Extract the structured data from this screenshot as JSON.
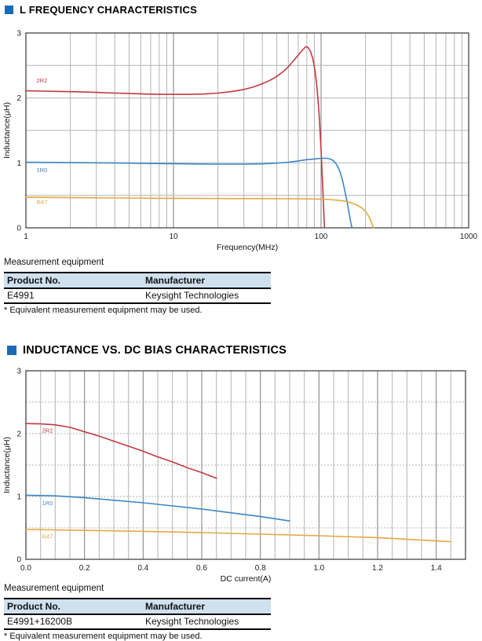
{
  "colors": {
    "accent_blue": "#1a6bb5",
    "table_header_bg": "#cfe0ee",
    "series_red": "#bf3a42",
    "series_blue": "#3b86c4",
    "series_orange": "#e2a942",
    "grid_minor": "#b3b3b3",
    "grid_major": "#7d7d7d",
    "plot_border": "#444444"
  },
  "section1": {
    "title": "L FREQUENCY CHARACTERISTICS",
    "equipment": {
      "caption": "Measurement equipment",
      "columns": [
        "Product No.",
        "Manufacturer"
      ],
      "rows": [
        [
          "E4991",
          "Keysight Technologies"
        ]
      ],
      "footnote": "* Equivalent measurement equipment may be used."
    }
  },
  "section2": {
    "title": "INDUCTANCE VS. DC BIAS CHARACTERISTICS",
    "equipment": {
      "caption": "Measurement equipment",
      "columns": [
        "Product No.",
        "Manufacturer"
      ],
      "rows": [
        [
          "E4991+16200B",
          "Keysight Technologies"
        ]
      ],
      "footnote": "* Equivalent measurement equipment may be used."
    }
  },
  "chart_data": [
    {
      "type": "line",
      "title": "L FREQUENCY CHARACTERISTICS",
      "xlabel": "Frequency(MHz)",
      "ylabel": "Inductance(μH)",
      "xscale": "log",
      "xlim": [
        1,
        1000
      ],
      "ylim": [
        0,
        3
      ],
      "xticks": [
        1,
        10,
        100,
        1000
      ],
      "xtick_labels": [
        "1",
        "10",
        "100",
        "1000"
      ],
      "yticks": [
        0,
        1,
        2,
        3
      ],
      "ytick_labels": [
        "0",
        "1",
        "2",
        "3"
      ],
      "y_grid_step": 0.5,
      "grid": "on",
      "legend_position": "inline-labels",
      "series": [
        {
          "name": "2R2",
          "color": "#bf3a42",
          "label_pos": [
            1.18,
            2.24
          ],
          "points": [
            [
              1,
              2.11
            ],
            [
              1.3,
              2.105
            ],
            [
              1.7,
              2.1
            ],
            [
              2.2,
              2.095
            ],
            [
              3,
              2.085
            ],
            [
              4,
              2.075
            ],
            [
              5,
              2.07
            ],
            [
              6.5,
              2.06
            ],
            [
              8,
              2.055
            ],
            [
              10,
              2.055
            ],
            [
              13,
              2.055
            ],
            [
              16,
              2.06
            ],
            [
              20,
              2.075
            ],
            [
              25,
              2.1
            ],
            [
              30,
              2.13
            ],
            [
              35,
              2.17
            ],
            [
              40,
              2.22
            ],
            [
              45,
              2.27
            ],
            [
              50,
              2.33
            ],
            [
              55,
              2.4
            ],
            [
              60,
              2.48
            ],
            [
              65,
              2.57
            ],
            [
              70,
              2.66
            ],
            [
              75,
              2.74
            ],
            [
              78,
              2.78
            ],
            [
              80,
              2.79
            ],
            [
              82,
              2.77
            ],
            [
              85,
              2.71
            ],
            [
              88,
              2.6
            ],
            [
              91,
              2.42
            ],
            [
              94,
              2.15
            ],
            [
              97,
              1.75
            ],
            [
              100,
              1.2
            ],
            [
              103,
              0.55
            ],
            [
              105,
              0.1
            ],
            [
              105.5,
              0
            ]
          ]
        },
        {
          "name": "1R0",
          "color": "#3b86c4",
          "label_pos": [
            1.18,
            0.86
          ],
          "points": [
            [
              1,
              1.01
            ],
            [
              2,
              1.005
            ],
            [
              3,
              1.0
            ],
            [
              5,
              0.995
            ],
            [
              8,
              0.99
            ],
            [
              12,
              0.985
            ],
            [
              20,
              0.98
            ],
            [
              30,
              0.98
            ],
            [
              40,
              0.985
            ],
            [
              50,
              0.995
            ],
            [
              60,
              1.01
            ],
            [
              70,
              1.03
            ],
            [
              80,
              1.05
            ],
            [
              90,
              1.06
            ],
            [
              100,
              1.07
            ],
            [
              110,
              1.07
            ],
            [
              115,
              1.06
            ],
            [
              120,
              1.04
            ],
            [
              125,
              1.0
            ],
            [
              130,
              0.94
            ],
            [
              135,
              0.85
            ],
            [
              140,
              0.72
            ],
            [
              145,
              0.57
            ],
            [
              150,
              0.4
            ],
            [
              155,
              0.22
            ],
            [
              159,
              0.08
            ],
            [
              162,
              0
            ]
          ]
        },
        {
          "name": "R47",
          "color": "#e2a942",
          "label_pos": [
            1.18,
            0.36
          ],
          "points": [
            [
              1,
              0.47
            ],
            [
              2,
              0.465
            ],
            [
              4,
              0.46
            ],
            [
              8,
              0.455
            ],
            [
              15,
              0.452
            ],
            [
              25,
              0.45
            ],
            [
              40,
              0.45
            ],
            [
              60,
              0.448
            ],
            [
              80,
              0.445
            ],
            [
              100,
              0.44
            ],
            [
              115,
              0.435
            ],
            [
              130,
              0.425
            ],
            [
              145,
              0.41
            ],
            [
              160,
              0.385
            ],
            [
              175,
              0.35
            ],
            [
              190,
              0.3
            ],
            [
              200,
              0.25
            ],
            [
              210,
              0.18
            ],
            [
              218,
              0.1
            ],
            [
              224,
              0.03
            ],
            [
              226,
              0
            ]
          ]
        }
      ]
    },
    {
      "type": "line",
      "title": "INDUCTANCE VS. DC BIAS CHARACTERISTICS",
      "xlabel": "DC current(A)",
      "ylabel": "Inductance(μH)",
      "xscale": "linear",
      "xlim": [
        0,
        1.5
      ],
      "ylim": [
        0,
        3
      ],
      "x_minor_step": 0.05,
      "x_major_every": 4,
      "xticks": [
        0,
        0.2,
        0.4,
        0.6,
        0.8,
        1.0,
        1.2,
        1.4
      ],
      "xtick_labels": [
        "0.0",
        "0.2",
        "0.4",
        "0.6",
        "0.8",
        "1.0",
        "1.2",
        "1.4"
      ],
      "yticks": [
        0,
        1,
        2,
        3
      ],
      "ytick_labels": [
        "0",
        "1",
        "2",
        "3"
      ],
      "y_grid_step": 0.5,
      "y_grid_dash": "2,2",
      "grid": "on",
      "legend_position": "inline-labels",
      "series": [
        {
          "name": "2R2",
          "color": "#bf3a42",
          "label_pos": [
            0.055,
            2.02
          ],
          "points": [
            [
              0,
              2.16
            ],
            [
              0.05,
              2.155
            ],
            [
              0.1,
              2.14
            ],
            [
              0.15,
              2.1
            ],
            [
              0.2,
              2.03
            ],
            [
              0.25,
              1.96
            ],
            [
              0.3,
              1.88
            ],
            [
              0.35,
              1.8
            ],
            [
              0.4,
              1.72
            ],
            [
              0.45,
              1.63
            ],
            [
              0.5,
              1.55
            ],
            [
              0.55,
              1.46
            ],
            [
              0.6,
              1.38
            ],
            [
              0.65,
              1.29
            ]
          ]
        },
        {
          "name": "1R0",
          "color": "#3b86c4",
          "label_pos": [
            0.055,
            0.86
          ],
          "points": [
            [
              0,
              1.02
            ],
            [
              0.1,
              1.01
            ],
            [
              0.2,
              0.98
            ],
            [
              0.3,
              0.94
            ],
            [
              0.4,
              0.9
            ],
            [
              0.5,
              0.85
            ],
            [
              0.6,
              0.8
            ],
            [
              0.7,
              0.74
            ],
            [
              0.8,
              0.68
            ],
            [
              0.9,
              0.61
            ]
          ]
        },
        {
          "name": "R47",
          "color": "#e2a942",
          "label_pos": [
            0.055,
            0.33
          ],
          "points": [
            [
              0,
              0.475
            ],
            [
              0.2,
              0.46
            ],
            [
              0.4,
              0.445
            ],
            [
              0.6,
              0.425
            ],
            [
              0.8,
              0.4
            ],
            [
              1.0,
              0.375
            ],
            [
              1.2,
              0.345
            ],
            [
              1.45,
              0.28
            ]
          ]
        }
      ]
    }
  ]
}
